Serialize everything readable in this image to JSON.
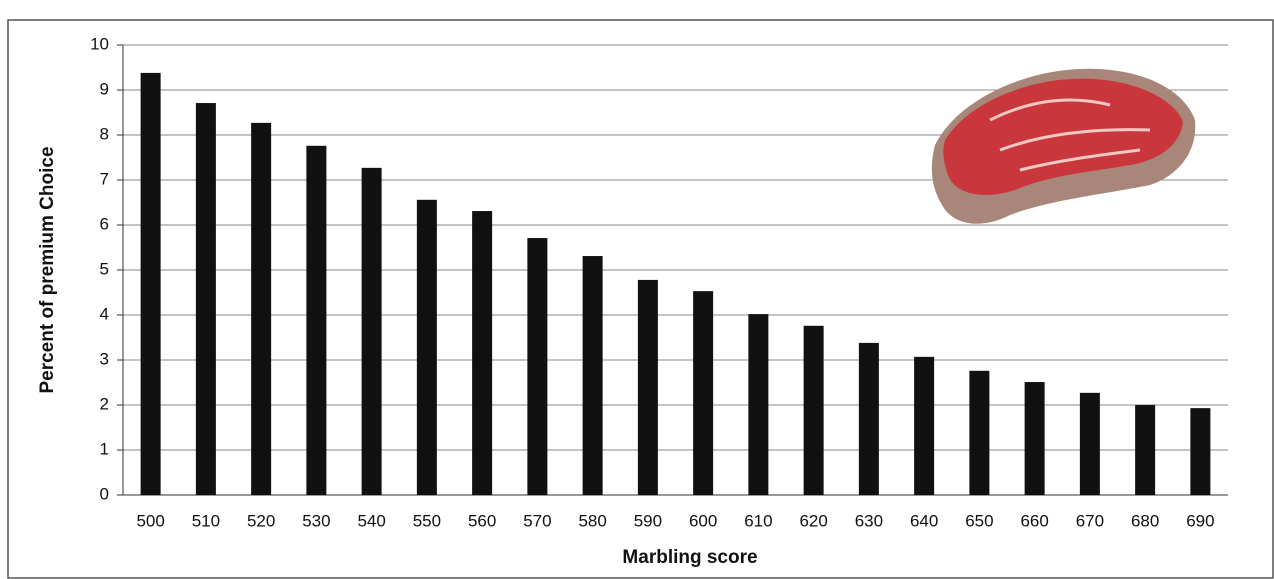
{
  "chart_data": {
    "type": "bar",
    "xlabel": "Marbling score",
    "ylabel": "Percent of premium Choice",
    "categories": [
      "500",
      "510",
      "520",
      "530",
      "540",
      "550",
      "560",
      "570",
      "580",
      "590",
      "600",
      "610",
      "620",
      "630",
      "640",
      "650",
      "660",
      "670",
      "680",
      "690"
    ],
    "values": [
      9.38,
      8.71,
      8.27,
      7.76,
      7.27,
      6.56,
      6.31,
      5.71,
      5.31,
      4.78,
      4.53,
      4.02,
      3.76,
      3.38,
      3.07,
      2.76,
      2.51,
      2.27,
      2.0,
      1.93
    ],
    "color": "#111111",
    "ylim": [
      0,
      10
    ],
    "yticks": [
      0,
      1,
      2,
      3,
      4,
      5,
      6,
      7,
      8,
      9,
      10
    ],
    "grid": true
  }
}
